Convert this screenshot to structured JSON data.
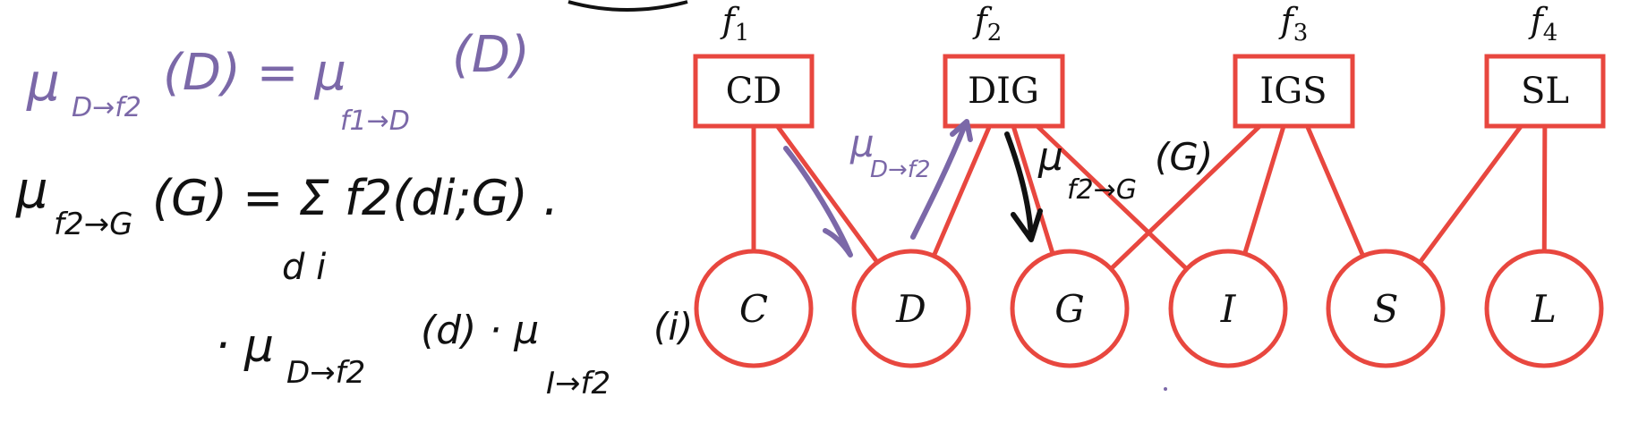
{
  "factor_labels": [
    "f",
    "f",
    "f",
    "f"
  ],
  "factor_label_subscripts": [
    "1",
    "2",
    "3",
    "4"
  ],
  "factors": [
    "CD",
    "DIG",
    "IGS",
    "SL"
  ],
  "variables": [
    "C",
    "D",
    "G",
    "I",
    "S",
    "L"
  ],
  "edges": [
    {
      "factor": "CD",
      "variable": "C"
    },
    {
      "factor": "CD",
      "variable": "D"
    },
    {
      "factor": "DIG",
      "variable": "D"
    },
    {
      "factor": "DIG",
      "variable": "G"
    },
    {
      "factor": "DIG",
      "variable": "I"
    },
    {
      "factor": "IGS",
      "variable": "G"
    },
    {
      "factor": "IGS",
      "variable": "I"
    },
    {
      "factor": "IGS",
      "variable": "S"
    },
    {
      "factor": "SL",
      "variable": "S"
    },
    {
      "factor": "SL",
      "variable": "L"
    }
  ],
  "colors": {
    "graph": "#e8473f",
    "ink_purple": "#7b68a8",
    "ink_black": "#111111"
  },
  "annotations": {
    "eq1_left": "μ",
    "eq1_left_sub": "D→f2",
    "eq1_left_arg": "(D) = μ",
    "eq1_right_sub": "f1→D",
    "eq1_right_arg": "(D)",
    "eq2_mu": "μ",
    "eq2_sub": "f2→G",
    "eq2_rest": "(G) = Σ f2(di;G) .",
    "eq2_sum_index": "d i",
    "eq3_mu": "· μ",
    "eq3_sub": "D→f2",
    "eq3_mid": "(d) · μ",
    "eq3_sub2": "I→f2",
    "eq3_arg2": "(i)",
    "edge_msg_purple": "μ",
    "edge_msg_purple_sub": "D→f2",
    "edge_msg_black": "μ",
    "edge_msg_black_sub": "f2→G",
    "edge_msg_black_arg": "(G)"
  }
}
